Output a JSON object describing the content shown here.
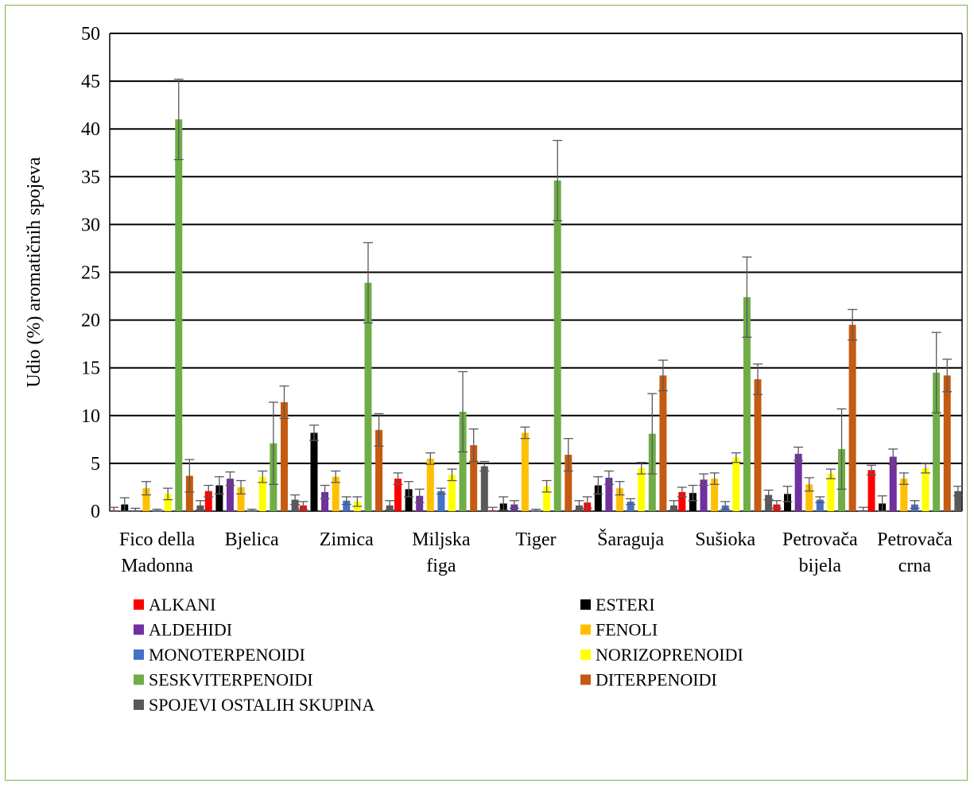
{
  "chart_data": {
    "type": "bar",
    "title": "",
    "xlabel": "",
    "ylabel": "Udio (%) aromatičnih spojeva",
    "ylim": [
      0,
      50
    ],
    "yticks": [
      0,
      5,
      10,
      15,
      20,
      25,
      30,
      35,
      40,
      45,
      50
    ],
    "grid": "horizontal",
    "legend_position": "bottom",
    "error_bars": true,
    "categories": [
      [
        "Fico della",
        "Madonna"
      ],
      [
        "Bjelica"
      ],
      [
        "Zimica"
      ],
      [
        "Miljska",
        "figa"
      ],
      [
        "Tiger"
      ],
      [
        "Šaraguja"
      ],
      [
        "Sušioka"
      ],
      [
        "Petrovača",
        "bijela"
      ],
      [
        "Petrovača",
        "crna"
      ]
    ],
    "series": [
      {
        "name": "ALKANI",
        "color": "#ff0000",
        "values": [
          0.1,
          2.1,
          0.6,
          3.4,
          0.1,
          0.9,
          2.0,
          0.7,
          4.3
        ],
        "errors": [
          0.3,
          0.6,
          0.4,
          0.6,
          0.3,
          0.6,
          0.5,
          0.4,
          0.5
        ]
      },
      {
        "name": "ESTERI",
        "color": "#000000",
        "values": [
          0.7,
          2.7,
          8.2,
          2.3,
          0.8,
          2.7,
          1.9,
          1.8,
          0.8
        ],
        "errors": [
          0.7,
          0.9,
          0.8,
          0.8,
          0.7,
          0.9,
          0.8,
          0.8,
          0.8
        ]
      },
      {
        "name": "ALDEHIDI",
        "color": "#7030a0",
        "values": [
          0.1,
          3.4,
          2.0,
          1.6,
          0.7,
          3.5,
          3.3,
          6.0,
          5.7
        ],
        "errors": [
          0.2,
          0.7,
          0.7,
          0.7,
          0.4,
          0.7,
          0.6,
          0.7,
          0.8
        ]
      },
      {
        "name": "FENOLI",
        "color": "#ffc000",
        "values": [
          2.4,
          2.5,
          3.6,
          5.5,
          8.2,
          2.4,
          3.4,
          2.8,
          3.4
        ],
        "errors": [
          0.7,
          0.7,
          0.6,
          0.6,
          0.6,
          0.7,
          0.6,
          0.7,
          0.6
        ]
      },
      {
        "name": "MONOTERPENOIDI",
        "color": "#4472c4",
        "values": [
          0.1,
          0.1,
          1.1,
          2.1,
          0.1,
          1.0,
          0.6,
          1.2,
          0.7
        ],
        "errors": [
          0.1,
          0.1,
          0.4,
          0.3,
          0.1,
          0.3,
          0.4,
          0.3,
          0.4
        ]
      },
      {
        "name": "NORIZOPRENOIDI",
        "color": "#ffff00",
        "values": [
          1.8,
          3.6,
          1.0,
          3.8,
          2.6,
          4.5,
          5.6,
          3.9,
          4.5
        ],
        "errors": [
          0.6,
          0.6,
          0.5,
          0.6,
          0.6,
          0.6,
          0.5,
          0.5,
          0.5
        ]
      },
      {
        "name": "SESKVITERPENOIDI",
        "color": "#70ad47",
        "values": [
          41.0,
          7.1,
          23.9,
          10.4,
          34.6,
          8.1,
          22.4,
          6.5,
          14.5
        ],
        "errors": [
          4.2,
          4.3,
          4.2,
          4.2,
          4.2,
          4.2,
          4.2,
          4.2,
          4.2
        ]
      },
      {
        "name": "DITERPENOIDI",
        "color": "#c55a11",
        "values": [
          3.7,
          11.4,
          8.5,
          6.9,
          5.9,
          14.2,
          13.8,
          19.5,
          14.2
        ],
        "errors": [
          1.7,
          1.7,
          1.7,
          1.7,
          1.7,
          1.6,
          1.6,
          1.6,
          1.7
        ]
      },
      {
        "name": "SPOJEVI OSTALIH SKUPINA",
        "color": "#595959",
        "values": [
          0.6,
          1.2,
          0.6,
          4.7,
          0.6,
          0.6,
          1.7,
          0.1,
          2.1
        ],
        "errors": [
          0.5,
          0.5,
          0.5,
          0.5,
          0.5,
          0.5,
          0.5,
          0.3,
          0.5
        ]
      }
    ]
  }
}
